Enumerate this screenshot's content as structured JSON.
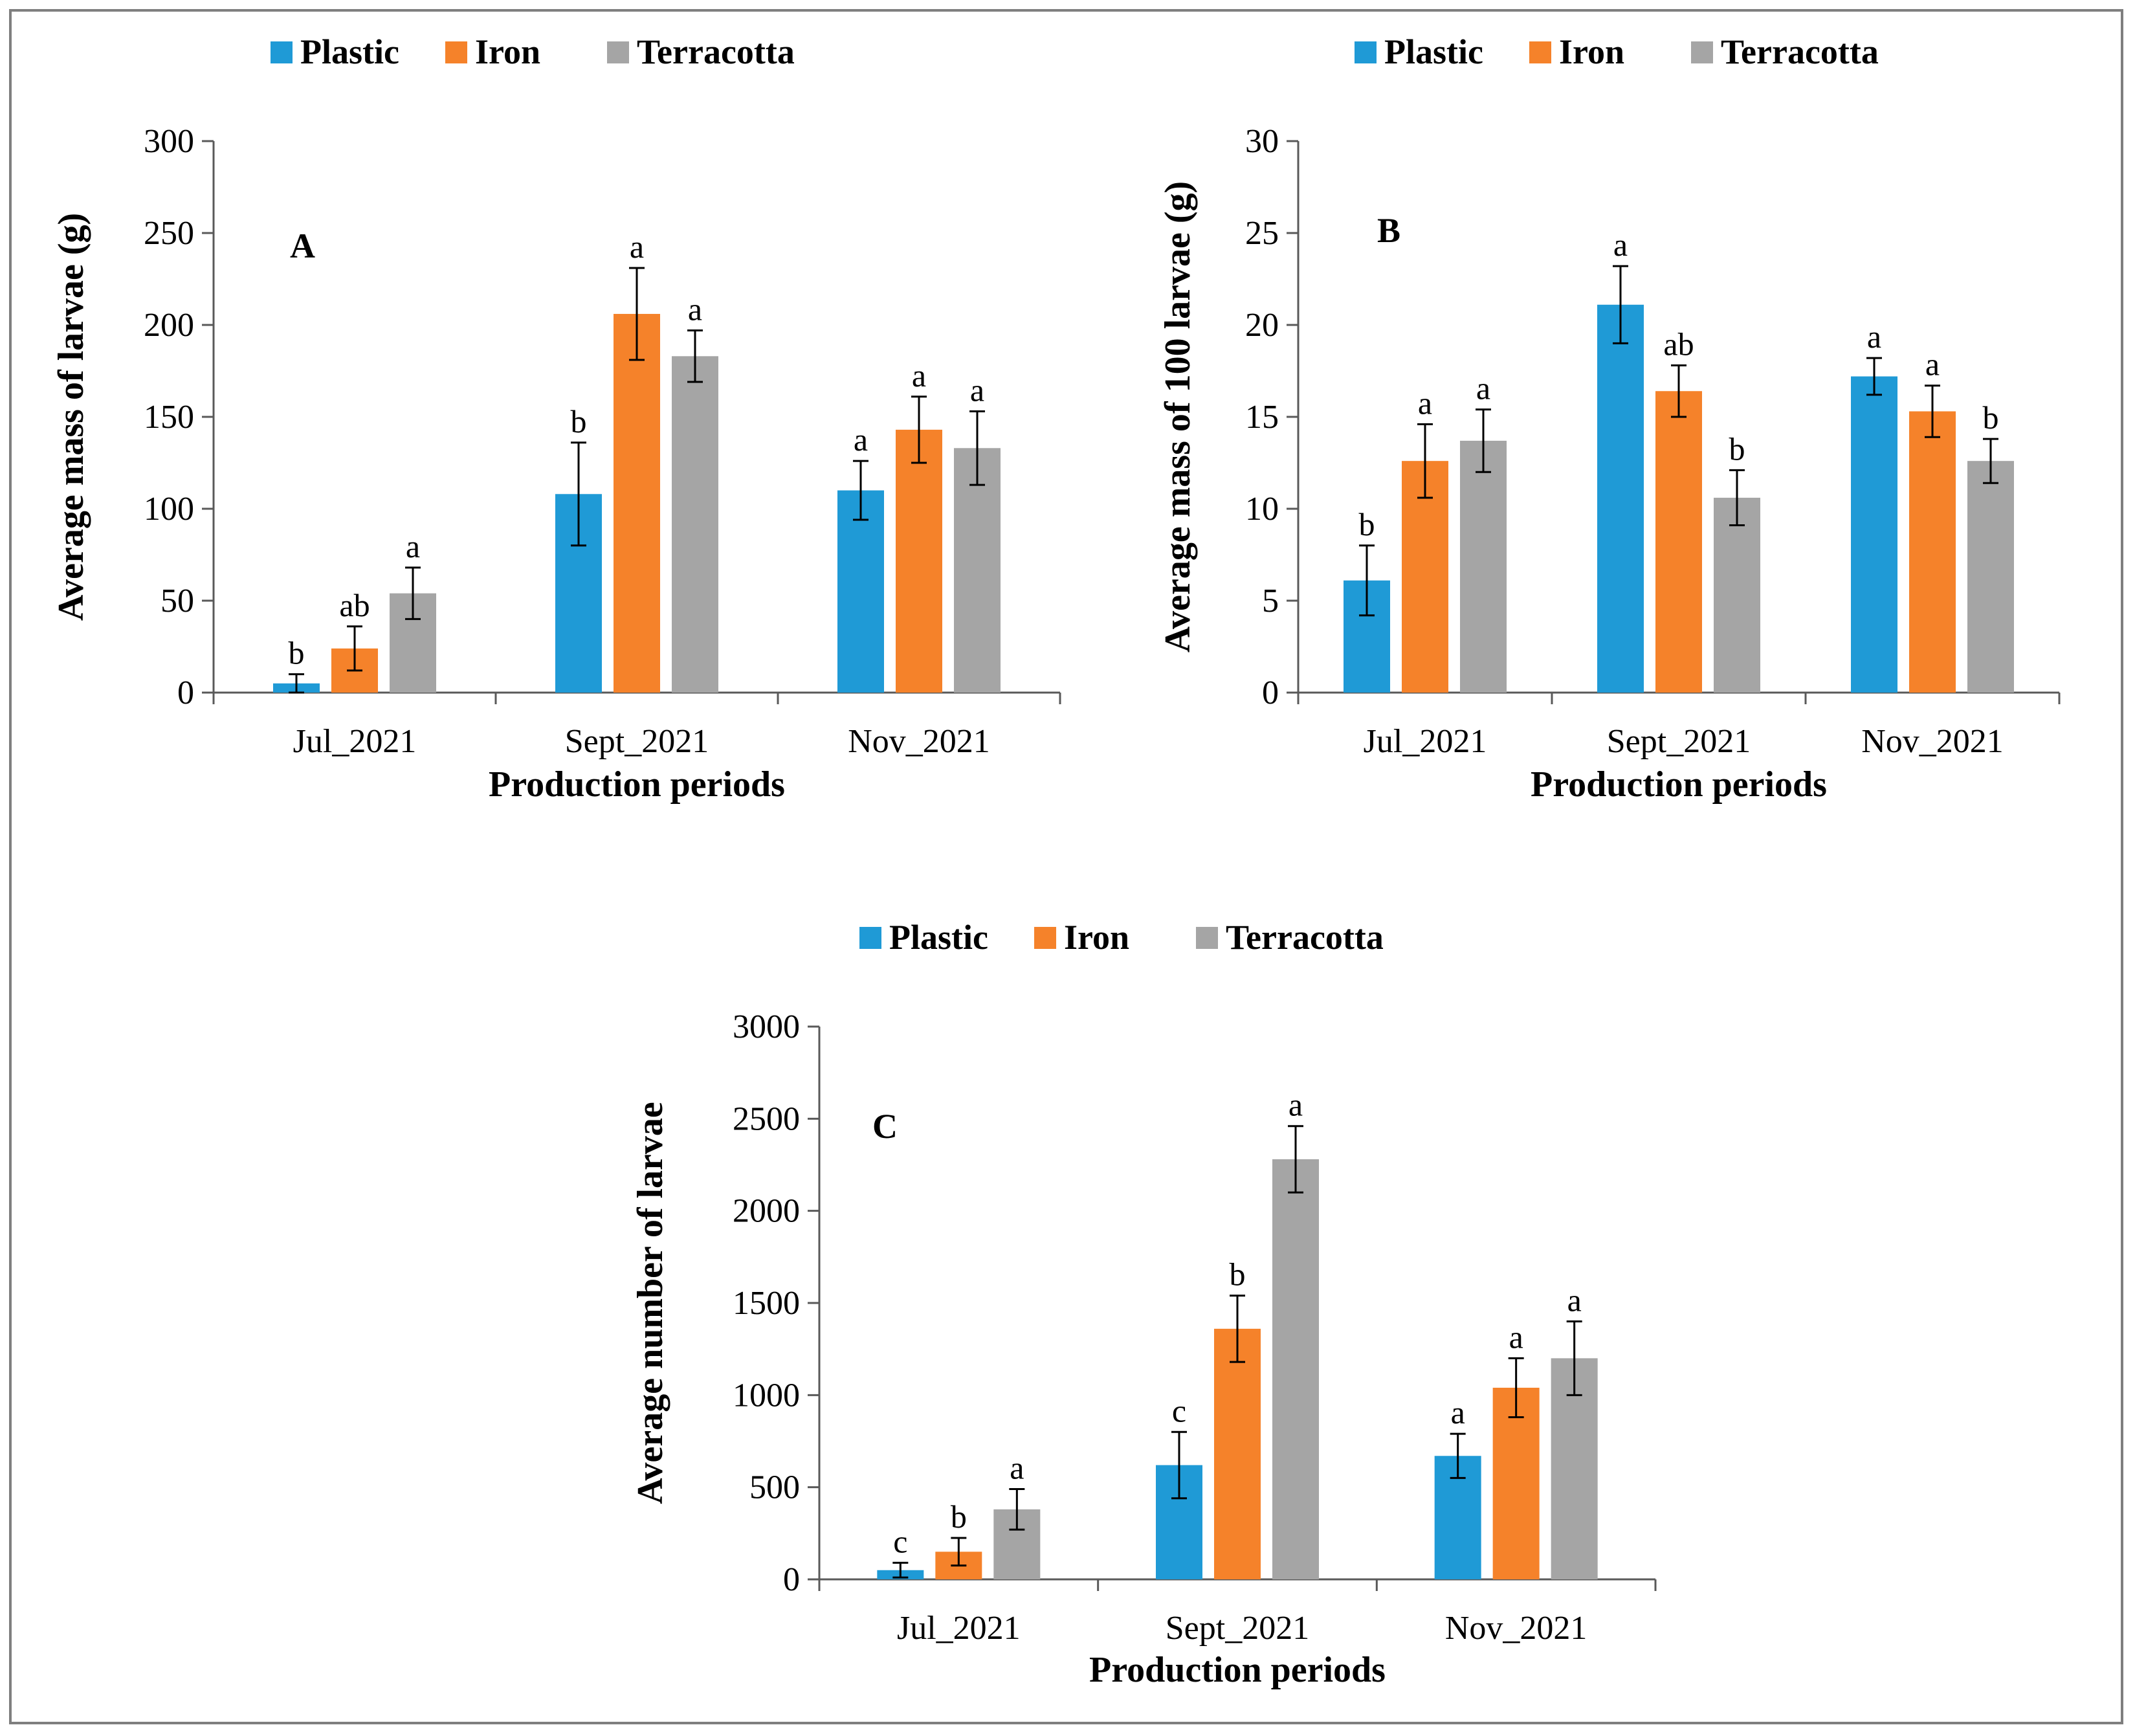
{
  "figure": {
    "colors": {
      "Plastic": "#1f9ad6",
      "Iron": "#f5822a",
      "Terracotta": "#a5a5a5"
    }
  },
  "chart_data": [
    {
      "id": "A",
      "type": "bar",
      "panel_label": "A",
      "categories": [
        "Jul_2021",
        "Sept_2021",
        "Nov_2021"
      ],
      "xlabel": "Production periods",
      "ylabel": "Average mass of larvae (g)",
      "ylim": [
        0,
        300
      ],
      "yticks": [
        0,
        50,
        100,
        150,
        200,
        250,
        300
      ],
      "legend": [
        "Plastic",
        "Iron",
        "Terracotta"
      ],
      "legend_position": "top",
      "grid": false,
      "series": [
        {
          "name": "Plastic",
          "values": [
            5,
            108,
            110
          ],
          "errors": [
            5,
            28,
            16
          ],
          "labels": [
            "b",
            "b",
            "a"
          ]
        },
        {
          "name": "Iron",
          "values": [
            24,
            206,
            143
          ],
          "errors": [
            12,
            25,
            18
          ],
          "labels": [
            "ab",
            "a",
            "a"
          ]
        },
        {
          "name": "Terracotta",
          "values": [
            54,
            183,
            133
          ],
          "errors": [
            14,
            14,
            20
          ],
          "labels": [
            "a",
            "a",
            "a"
          ]
        }
      ]
    },
    {
      "id": "B",
      "type": "bar",
      "panel_label": "B",
      "categories": [
        "Jul_2021",
        "Sept_2021",
        "Nov_2021"
      ],
      "xlabel": "Production periods",
      "ylabel": "Average mass of 100 larvae (g)",
      "ylim": [
        0,
        30
      ],
      "yticks": [
        0,
        5,
        10,
        15,
        20,
        25,
        30
      ],
      "legend": [
        "Plastic",
        "Iron",
        "Terracotta"
      ],
      "legend_position": "top",
      "grid": false,
      "series": [
        {
          "name": "Plastic",
          "values": [
            6.1,
            21.1,
            17.2
          ],
          "errors": [
            1.9,
            2.1,
            1.0
          ],
          "labels": [
            "b",
            "a",
            "a"
          ]
        },
        {
          "name": "Iron",
          "values": [
            12.6,
            16.4,
            15.3
          ],
          "errors": [
            2.0,
            1.4,
            1.4
          ],
          "labels": [
            "a",
            "ab",
            "a"
          ]
        },
        {
          "name": "Terracotta",
          "values": [
            13.7,
            10.6,
            12.6
          ],
          "errors": [
            1.7,
            1.5,
            1.2
          ],
          "labels": [
            "a",
            "b",
            "b"
          ]
        }
      ]
    },
    {
      "id": "C",
      "type": "bar",
      "panel_label": "C",
      "categories": [
        "Jul_2021",
        "Sept_2021",
        "Nov_2021"
      ],
      "xlabel": "Production periods",
      "ylabel": "Average number of larvae",
      "ylim": [
        0,
        3000
      ],
      "yticks": [
        0,
        500,
        1000,
        1500,
        2000,
        2500,
        3000
      ],
      "legend": [
        "Plastic",
        "Iron",
        "Terracotta"
      ],
      "legend_position": "top",
      "grid": false,
      "series": [
        {
          "name": "Plastic",
          "values": [
            50,
            620,
            670
          ],
          "errors": [
            40,
            180,
            120
          ],
          "labels": [
            "c",
            "c",
            "a"
          ]
        },
        {
          "name": "Iron",
          "values": [
            150,
            1360,
            1040
          ],
          "errors": [
            75,
            180,
            160
          ],
          "labels": [
            "b",
            "b",
            "a"
          ]
        },
        {
          "name": "Terracotta",
          "values": [
            380,
            2280,
            1200
          ],
          "errors": [
            110,
            180,
            200
          ],
          "labels": [
            "a",
            "a",
            "a"
          ]
        }
      ]
    }
  ]
}
